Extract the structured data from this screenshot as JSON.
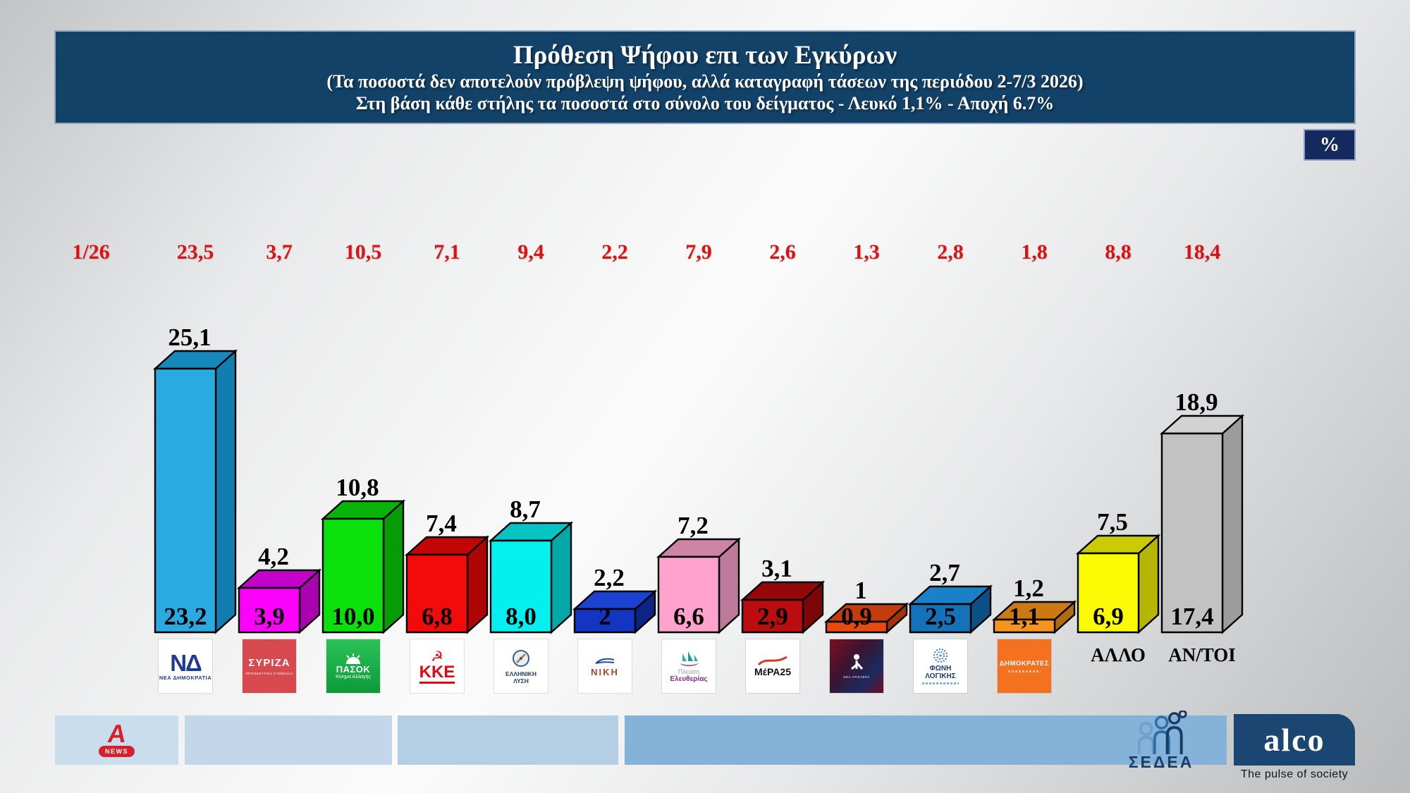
{
  "header": {
    "title": "Πρόθεση Ψήφου επι των Εγκύρων",
    "subtitle_1": "(Τα ποσοστά δεν αποτελούν πρόβλεψη ψήφου, αλλά καταγραφή τάσεων της περιόδου  2-7/3 2026)",
    "subtitle_2": "Στη βάση κάθε στήλης τα ποσοστά στο σύνολο του δείγματος - Λευκό 1,1% - Αποχή 6.7%"
  },
  "percent_badge": "%",
  "previous_wave": {
    "period_label": "1/26",
    "values": [
      "23,5",
      "3,7",
      "10,5",
      "7,1",
      "9,4",
      "2,2",
      "7,9",
      "2,6",
      "1,3",
      "2,8",
      "1,8",
      "8,8",
      "18,4"
    ]
  },
  "chart_data": {
    "type": "bar",
    "title": "Πρόθεση Ψήφου επι των Εγκύρων",
    "categories": [
      "ΝΕΑ ΔΗΜΟΚΡΑΤΙΑ",
      "ΣΥΡΙΖΑ",
      "ΠΑΣΟΚ",
      "ΚΚΕ",
      "ΕΛΛΗΝΙΚΗ ΛΥΣΗ",
      "ΝΙΚΗ",
      "ΠΛΕΥΣΗ ΕΛΕΥΘΕΡΙΑΣ",
      "ΜέΡΑ25",
      "ΝΕΑ ΑΡΙΣΤΕΡΑ",
      "ΦΩΝΗ ΛΟΓΙΚΗΣ",
      "ΔΗΜΟΚΡΑΤΕΣ",
      "ΑΛΛΟ",
      "ΑΝ/ΤΟΙ"
    ],
    "series": [
      {
        "name": "percent_of_valid_votes_top_labels",
        "values": [
          25.1,
          4.2,
          10.8,
          7.4,
          8.7,
          2.2,
          7.2,
          3.1,
          1,
          2.7,
          1.2,
          7.5,
          18.9
        ],
        "labels": [
          "25,1",
          "4,2",
          "10,8",
          "7,4",
          "8,7",
          "2,2",
          "7,2",
          "3,1",
          "1",
          "2,7",
          "1,2",
          "7,5",
          "18,9"
        ]
      },
      {
        "name": "percent_of_total_sample_bottom_labels",
        "values": [
          23.2,
          3.9,
          10.0,
          6.8,
          8.0,
          2,
          6.6,
          2.9,
          0.9,
          2.5,
          1.1,
          6.9,
          17.4
        ],
        "labels": [
          "23,2",
          "3,9",
          "10,0",
          "6,8",
          "8,0",
          "2",
          "6,6",
          "2,9",
          "0,9",
          "2,5",
          "1,1",
          "6,9",
          "17,4"
        ]
      },
      {
        "name": "previous_wave_1_26_red_row",
        "values": [
          23.5,
          3.7,
          10.5,
          7.1,
          9.4,
          2.2,
          7.9,
          2.6,
          1.3,
          2.8,
          1.8,
          8.8,
          18.4
        ],
        "labels": [
          "23,5",
          "3,7",
          "10,5",
          "7,1",
          "9,4",
          "2,2",
          "7,9",
          "2,6",
          "1,3",
          "2,8",
          "1,8",
          "8,8",
          "18,4"
        ]
      }
    ],
    "bar_colors": [
      {
        "front": "#29abe2",
        "top": "#1588bc",
        "side": "#117db0"
      },
      {
        "front": "#fb02fb",
        "top": "#c303c9",
        "side": "#a803ae"
      },
      {
        "front": "#0ae00a",
        "top": "#07b407",
        "side": "#069c06"
      },
      {
        "front": "#f30b0b",
        "top": "#c40505",
        "side": "#ad0404"
      },
      {
        "front": "#04f0f0",
        "top": "#04c4c4",
        "side": "#03a8a8"
      },
      {
        "front": "#1434c2",
        "top": "#1c42d2",
        "side": "#0d2386"
      },
      {
        "front": "#ffa3ce",
        "top": "#cd84a7",
        "side": "#bd7a9a"
      },
      {
        "front": "#bb0d10",
        "top": "#95080a",
        "side": "#7d0608"
      },
      {
        "front": "#e8490f",
        "top": "#c23c0c",
        "side": "#a5330a"
      },
      {
        "front": "#1473b8",
        "top": "#1a80c8",
        "side": "#0b4f84"
      },
      {
        "front": "#f7941d",
        "top": "#cb7a13",
        "side": "#b06a10"
      },
      {
        "front": "#fafa04",
        "top": "#cbcb04",
        "side": "#b5b504"
      },
      {
        "front": "#c2c2c2",
        "top": "#d2d2d2",
        "side": "#9c9c9c"
      }
    ],
    "ylim": [
      0,
      26
    ],
    "grid": false,
    "legend": false
  },
  "logos": {
    "nd": {
      "abbr": "ΝΔ",
      "name": "ΝΕΑ ΔΗΜΟΚΡΑΤΙΑ"
    },
    "syriza": {
      "name": "ΣΥΡΙΖΑ",
      "sub": "ΠΡΟΟΔΕΥΤΙΚΗ ΣΥΜΜΑΧΙΑ"
    },
    "pasok": {
      "name": "ΠΑΣΟΚ",
      "sub": "Κίνημα Αλλαγής"
    },
    "kke": {
      "name": "ΚΚΕ",
      "symbol": "☭"
    },
    "ellysi": {
      "line1": "ΕΛΛΗΝΙΚΗ",
      "line2": "ΛΥΣΗ"
    },
    "niki": {
      "name": "ΝΙΚΗ"
    },
    "plefsi": {
      "line1": "Πλεύση",
      "line2": "Ελευθερίας"
    },
    "mera25": {
      "name": "ΜέΡΑ25"
    },
    "nea_aristera": {
      "name": "ΝΕΑ ΑΡΙΣΤΕΡΑ"
    },
    "foni_logikis": {
      "name": "ΦΩΝΗ ΛΟΓΙΚΗΣ"
    },
    "dimokrates": {
      "name": "ΔΗΜΟΚΡΑΤΕΣ"
    },
    "allo_label": "ΑΛΛΟ",
    "antoi_label": "ΑΝ/ΤΟΙ"
  },
  "footer": {
    "alpha_news": {
      "letter": "A",
      "badge": "NEWS"
    },
    "sedea": "ΣΕΔΕΑ",
    "alco": {
      "name": "alco",
      "tagline": "The pulse of society"
    }
  },
  "colors": {
    "header_bg": "#134269",
    "previous_row_red": "#dd1111",
    "footer_band_blues": [
      "#cadded",
      "#c2d7ea",
      "#b4cfe4",
      "#85b2d8"
    ],
    "alco_navy": "#1c4672"
  }
}
